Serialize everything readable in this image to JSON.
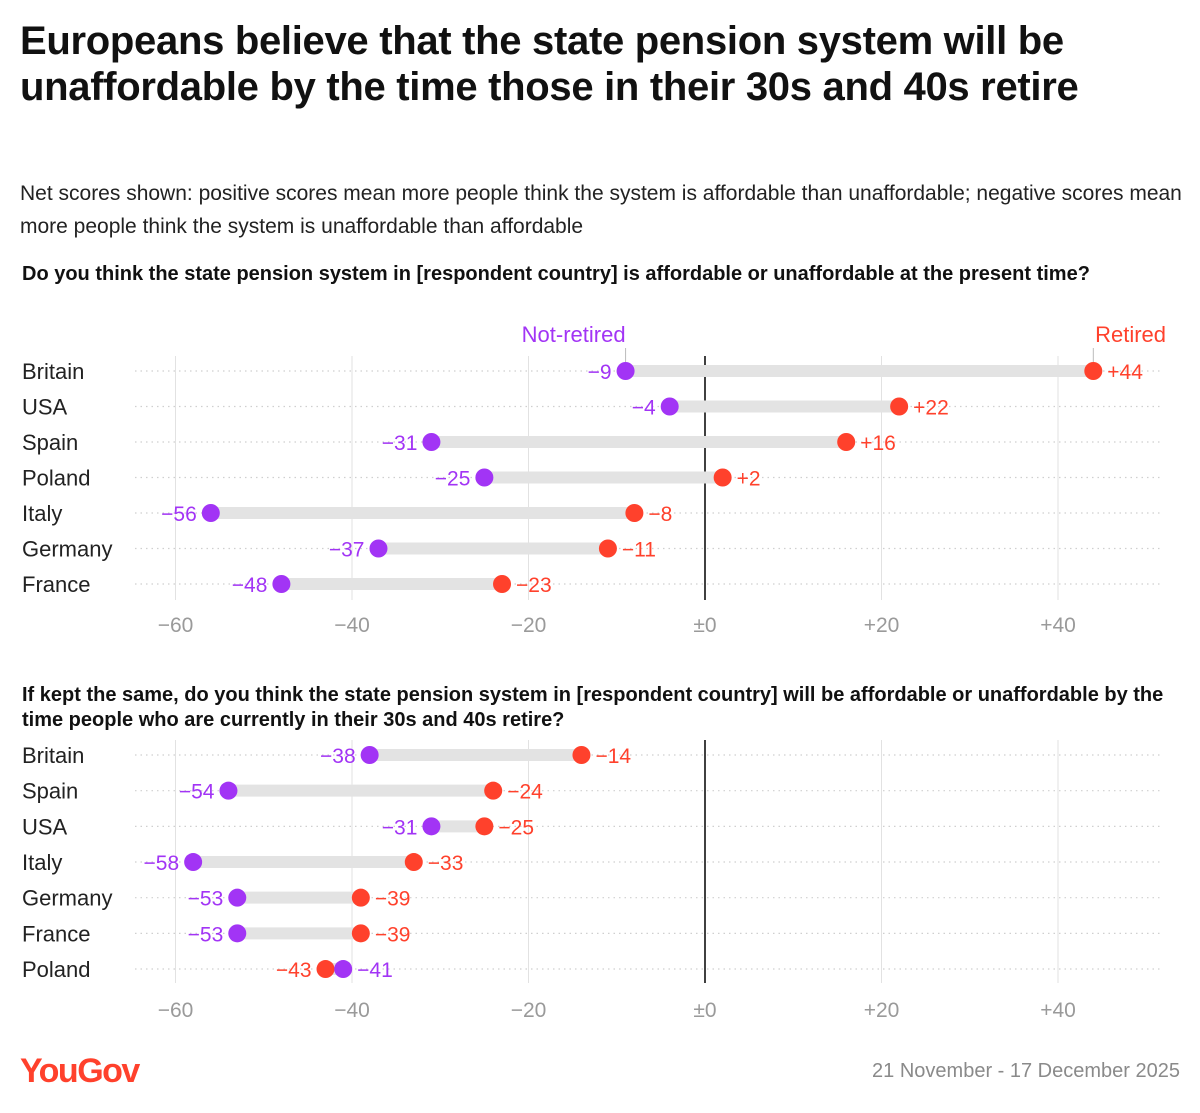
{
  "title": "Europeans believe that the state pension system will be unaffordable by the time those in their 30s and 40s retire",
  "subtitle": "Net scores shown: positive scores mean more people think the system is affordable than unaffordable; negative scores mean more people think the system is unaffordable than affordable",
  "colors": {
    "not_retired": "#a234f5",
    "retired": "#ff412c",
    "axis_text": "#9a9a9a",
    "bar": "#e3e3e3"
  },
  "chart_data": [
    {
      "type": "dumbbell",
      "title": "Do you think the state pension system in [respondent country] is affordable or unaffordable at the present time?",
      "series_names": {
        "not_retired": "Not-retired",
        "retired": "Retired"
      },
      "xlim": [
        -60,
        50
      ],
      "ticks": [
        -60,
        -40,
        -20,
        0,
        20,
        40
      ],
      "tick_labels": [
        "−60",
        "−40",
        "−20",
        "±0",
        "+20",
        "+40"
      ],
      "rows": [
        {
          "country": "Britain",
          "not_retired": -9,
          "retired": 44,
          "not_retired_label": "−9",
          "retired_label": "+44"
        },
        {
          "country": "USA",
          "not_retired": -4,
          "retired": 22,
          "not_retired_label": "−4",
          "retired_label": "+22"
        },
        {
          "country": "Spain",
          "not_retired": -31,
          "retired": 16,
          "not_retired_label": "−31",
          "retired_label": "+16"
        },
        {
          "country": "Poland",
          "not_retired": -25,
          "retired": 2,
          "not_retired_label": "−25",
          "retired_label": "+2"
        },
        {
          "country": "Italy",
          "not_retired": -56,
          "retired": -8,
          "not_retired_label": "−56",
          "retired_label": "−8"
        },
        {
          "country": "Germany",
          "not_retired": -37,
          "retired": -11,
          "not_retired_label": "−37",
          "retired_label": "−11"
        },
        {
          "country": "France",
          "not_retired": -48,
          "retired": -23,
          "not_retired_label": "−48",
          "retired_label": "−23"
        }
      ]
    },
    {
      "type": "dumbbell",
      "title": "If kept the same, do you think the state pension system in [respondent country] will be affordable or unaffordable by the time people who are currently in their 30s and 40s retire?",
      "xlim": [
        -60,
        50
      ],
      "ticks": [
        -60,
        -40,
        -20,
        0,
        20,
        40
      ],
      "tick_labels": [
        "−60",
        "−40",
        "−20",
        "±0",
        "+20",
        "+40"
      ],
      "rows": [
        {
          "country": "Britain",
          "not_retired": -38,
          "retired": -14,
          "not_retired_label": "−38",
          "retired_label": "−14"
        },
        {
          "country": "Spain",
          "not_retired": -54,
          "retired": -24,
          "not_retired_label": "−54",
          "retired_label": "−24"
        },
        {
          "country": "USA",
          "not_retired": -31,
          "retired": -25,
          "not_retired_label": "−31",
          "retired_label": "−25"
        },
        {
          "country": "Italy",
          "not_retired": -58,
          "retired": -33,
          "not_retired_label": "−58",
          "retired_label": "−33"
        },
        {
          "country": "Germany",
          "not_retired": -53,
          "retired": -39,
          "not_retired_label": "−53",
          "retired_label": "−39"
        },
        {
          "country": "France",
          "not_retired": -53,
          "retired": -39,
          "not_retired_label": "−53",
          "retired_label": "−39"
        },
        {
          "country": "Poland",
          "not_retired": -41,
          "retired": -43,
          "not_retired_label": "−41",
          "retired_label": "−43"
        }
      ]
    }
  ],
  "footer": {
    "logo": "YouGov",
    "date_range": "21 November - 17 December 2025"
  }
}
